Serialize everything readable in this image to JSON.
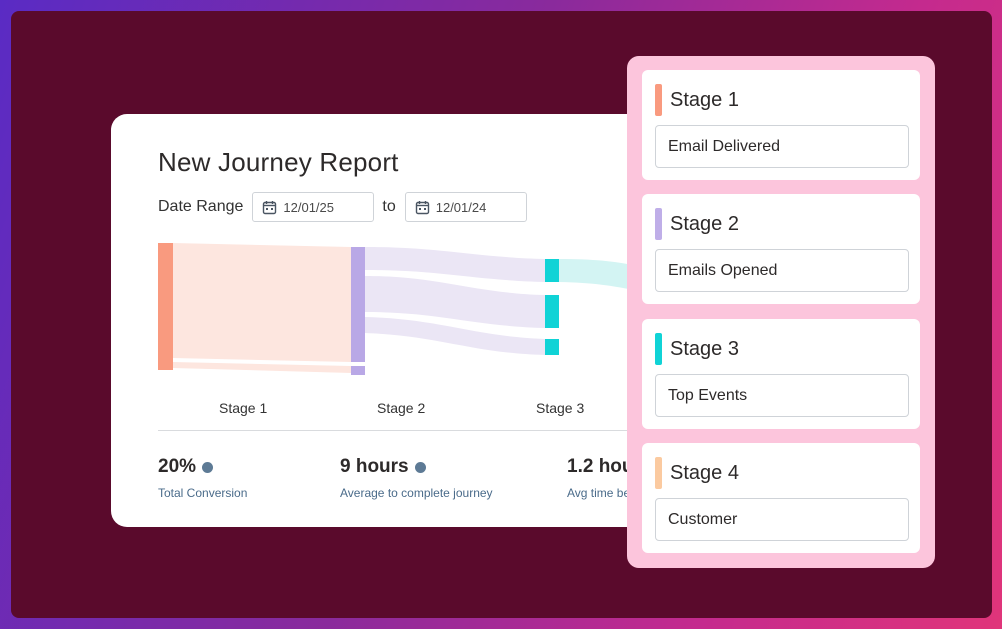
{
  "report": {
    "title": "New Journey Report",
    "date_range_label": "Date Range",
    "date_from": "12/01/25",
    "date_to_label": "to",
    "date_to": "12/01/24"
  },
  "flow_stages": [
    "Stage 1",
    "Stage 2",
    "Stage 3"
  ],
  "metrics": [
    {
      "value": "20%",
      "label": "Total Conversion"
    },
    {
      "value": "9 hours",
      "label": "Average to complete journey"
    },
    {
      "value": "1.2 hou",
      "label": "Avg time be"
    }
  ],
  "stages": [
    {
      "name": "Stage 1",
      "value": "Email Delivered",
      "color": "#f99a7f"
    },
    {
      "name": "Stage 2",
      "value": "Emails Opened",
      "color": "#bfaee8"
    },
    {
      "name": "Stage 3",
      "value": "Top Events",
      "color": "#10d3d6"
    },
    {
      "name": "Stage 4",
      "value": "Customer",
      "color": "#fbcaa0"
    }
  ],
  "colors": {
    "frame": "#5a0a2c",
    "panel": "#fcc5dc",
    "flow_stage1": "#f99a7f",
    "flow_stage2": "#b9a8e6",
    "flow_stage3": "#10d3d6"
  },
  "icons": {
    "date_picker": "calendar-icon",
    "info": "info-dot-icon"
  }
}
